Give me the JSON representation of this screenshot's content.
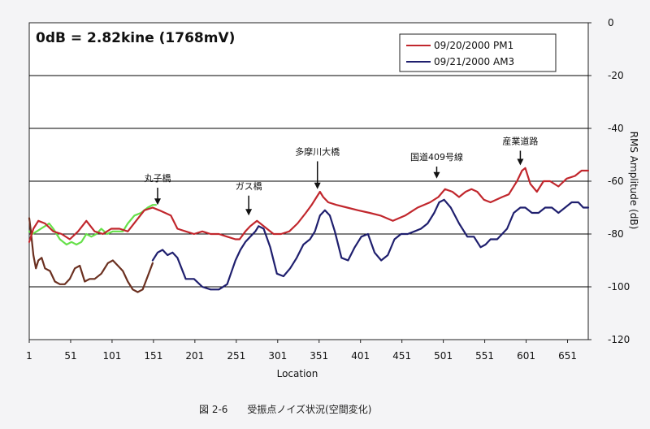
{
  "chart_data": {
    "type": "line",
    "header": "0dB = 2.82kine (1768mV)",
    "xlabel": "Location",
    "ylabel": "RMS Amplitude (dB)",
    "xlim": [
      1,
      676
    ],
    "ylim": [
      -120,
      0
    ],
    "x_ticks": [
      "1",
      "51",
      "101",
      "151",
      "201",
      "251",
      "301",
      "351",
      "401",
      "451",
      "501",
      "551",
      "601",
      "651"
    ],
    "y_ticks": [
      "0",
      "-20",
      "-40",
      "-60",
      "-80",
      "-100",
      "-120"
    ],
    "y_tick_values": [
      0,
      -20,
      -40,
      -60,
      -80,
      -100,
      -120
    ],
    "grid": "horizontal",
    "legend_position": "top-right",
    "colors": {
      "pm1": "#c1272d",
      "am3": "#1f1f6e",
      "green": "#66e04a",
      "brown": "#6b3020",
      "grid": "#000000"
    },
    "series": [
      {
        "name": "09/20/2000 PM1",
        "color": "#c1272d",
        "x": [
          1,
          6,
          12,
          20,
          30,
          40,
          50,
          60,
          70,
          80,
          90,
          100,
          110,
          120,
          130,
          140,
          150,
          158,
          165,
          172,
          180,
          190,
          200,
          210,
          220,
          230,
          240,
          250,
          255,
          262,
          268,
          272,
          276,
          280,
          288,
          296,
          305,
          315,
          325,
          335,
          342,
          348,
          352,
          356,
          362,
          372,
          385,
          398,
          412,
          425,
          440,
          455,
          470,
          485,
          495,
          503,
          512,
          520,
          528,
          535,
          542,
          550,
          558,
          565,
          572,
          580,
          590,
          596,
          600,
          606,
          614,
          622,
          630,
          640,
          650,
          660,
          668,
          676
        ],
        "y": [
          -83,
          -78,
          -75,
          -76,
          -79,
          -80,
          -82,
          -79,
          -75,
          -79,
          -80,
          -78,
          -78,
          -79,
          -75,
          -71,
          -70,
          -71,
          -72,
          -73,
          -78,
          -79,
          -80,
          -79,
          -80,
          -80,
          -81,
          -82,
          -82,
          -79,
          -77,
          -76,
          -75,
          -76,
          -78,
          -80,
          -80,
          -79,
          -76,
          -72,
          -69,
          -66,
          -64,
          -66,
          -68,
          -69,
          -70,
          -71,
          -72,
          -73,
          -75,
          -73,
          -70,
          -68,
          -66,
          -63,
          -64,
          -66,
          -64,
          -63,
          -64,
          -67,
          -68,
          -67,
          -66,
          -65,
          -60,
          -56,
          -55,
          -61,
          -64,
          -60,
          -60,
          -62,
          -59,
          -58,
          -56,
          -56
        ]
      },
      {
        "name": "09/21/2000 AM3",
        "color": "#1f1f6e",
        "x": [
          150,
          156,
          162,
          168,
          174,
          180,
          190,
          200,
          210,
          220,
          230,
          240,
          250,
          256,
          262,
          268,
          274,
          278,
          284,
          292,
          300,
          308,
          316,
          324,
          332,
          340,
          346,
          352,
          358,
          364,
          370,
          378,
          386,
          394,
          402,
          410,
          418,
          426,
          434,
          442,
          450,
          458,
          466,
          474,
          482,
          490,
          496,
          502,
          510,
          520,
          530,
          538,
          546,
          552,
          558,
          566,
          572,
          578,
          586,
          594,
          600,
          608,
          616,
          624,
          632,
          640,
          648,
          656,
          664,
          670,
          676
        ],
        "y": [
          -90,
          -87,
          -86,
          -88,
          -87,
          -89,
          -97,
          -97,
          -100,
          -101,
          -101,
          -99,
          -90,
          -86,
          -83,
          -81,
          -79,
          -77,
          -78,
          -85,
          -95,
          -96,
          -93,
          -89,
          -84,
          -82,
          -79,
          -73,
          -71,
          -73,
          -79,
          -89,
          -90,
          -85,
          -81,
          -80,
          -87,
          -90,
          -88,
          -82,
          -80,
          -80,
          -79,
          -78,
          -76,
          -72,
          -68,
          -67,
          -70,
          -76,
          -81,
          -81,
          -85,
          -84,
          -82,
          -82,
          -80,
          -78,
          -72,
          -70,
          -70,
          -72,
          -72,
          -70,
          -70,
          -72,
          -70,
          -68,
          -68,
          -70,
          -70
        ]
      },
      {
        "name": "",
        "color": "#66e04a",
        "x": [
          1,
          5,
          10,
          15,
          20,
          25,
          30,
          38,
          46,
          52,
          58,
          64,
          70,
          76,
          82,
          88,
          95,
          102,
          108,
          114,
          120,
          128,
          136,
          144,
          150,
          154
        ],
        "y": [
          -79,
          -80,
          -79,
          -78,
          -77,
          -76,
          -78,
          -82,
          -84,
          -83,
          -84,
          -83,
          -80,
          -81,
          -80,
          -78,
          -80,
          -79,
          -79,
          -79,
          -76,
          -73,
          -72,
          -70,
          -69,
          -69
        ]
      },
      {
        "name": "",
        "color": "#6b3020",
        "x": [
          1,
          3,
          6,
          9,
          12,
          16,
          20,
          26,
          32,
          38,
          44,
          50,
          56,
          62,
          68,
          74,
          80,
          88,
          96,
          102,
          108,
          114,
          120,
          126,
          132,
          138,
          144,
          150
        ],
        "y": [
          -74,
          -79,
          -88,
          -93,
          -90,
          -89,
          -93,
          -94,
          -98,
          -99,
          -99,
          -97,
          -93,
          -92,
          -98,
          -97,
          -97,
          -95,
          -91,
          -90,
          -92,
          -94,
          -98,
          -101,
          -102,
          -101,
          -96,
          -91
        ]
      }
    ],
    "legend": [
      {
        "label": "09/20/2000 PM1",
        "color": "#c1272d"
      },
      {
        "label": "09/21/2000 AM3",
        "color": "#1f1f6e"
      }
    ],
    "annotations": [
      {
        "text": "丸子橋",
        "x": 156,
        "y": -60,
        "arrow_to": -69
      },
      {
        "text": "ガス橋",
        "x": 266,
        "y": -63,
        "arrow_to": -73
      },
      {
        "text": "多摩川大橋",
        "x": 349,
        "y": -50,
        "arrow_to": -63
      },
      {
        "text": "国道409号線",
        "x": 493,
        "y": -52,
        "arrow_to": -59
      },
      {
        "text": "産業道路",
        "x": 594,
        "y": -46,
        "arrow_to": -54
      }
    ],
    "caption": "図 2-6　　受振点ノイズ状況(空間変化)"
  }
}
